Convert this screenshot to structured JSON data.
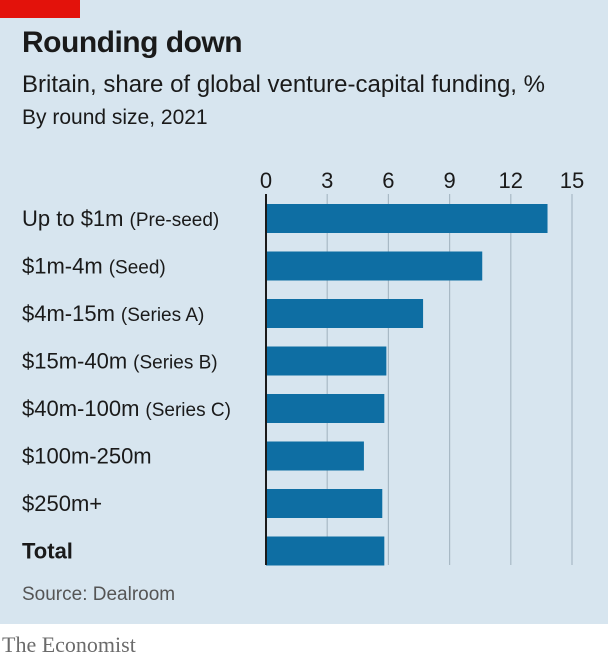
{
  "header": {
    "title": "Rounding down",
    "subtitle": "Britain, share of global venture-capital funding, %",
    "subtitle2": "By round size, 2021"
  },
  "footer": {
    "source": "Source: Dealroom",
    "brand": "The Economist"
  },
  "colors": {
    "panel": "#d7e5ef",
    "bar": "#0e6ea3",
    "accent": "#e3120b",
    "grid": "#a8b9c5"
  },
  "chart_data": {
    "type": "bar",
    "orientation": "horizontal",
    "title": "Rounding down",
    "subtitle": "Britain, share of global venture-capital funding, %",
    "xlim": [
      0,
      15
    ],
    "ticks": [
      "0",
      "3",
      "6",
      "9",
      "12",
      "15"
    ],
    "grid": true,
    "categories": [
      {
        "main": "Up to $1m",
        "sub": "(Pre-seed)",
        "bold": false
      },
      {
        "main": "$1m-4m",
        "sub": "(Seed)",
        "bold": false
      },
      {
        "main": "$4m-15m",
        "sub": "(Series A)",
        "bold": false
      },
      {
        "main": "$15m-40m",
        "sub": "(Series B)",
        "bold": false
      },
      {
        "main": "$40m-100m",
        "sub": "(Series C)",
        "bold": false
      },
      {
        "main": "$100m-250m",
        "sub": "",
        "bold": false
      },
      {
        "main": "$250m+",
        "sub": "",
        "bold": false
      },
      {
        "main": "Total",
        "sub": "",
        "bold": true
      }
    ],
    "values": [
      13.8,
      10.6,
      7.7,
      5.9,
      5.8,
      4.8,
      5.7,
      5.8
    ]
  }
}
